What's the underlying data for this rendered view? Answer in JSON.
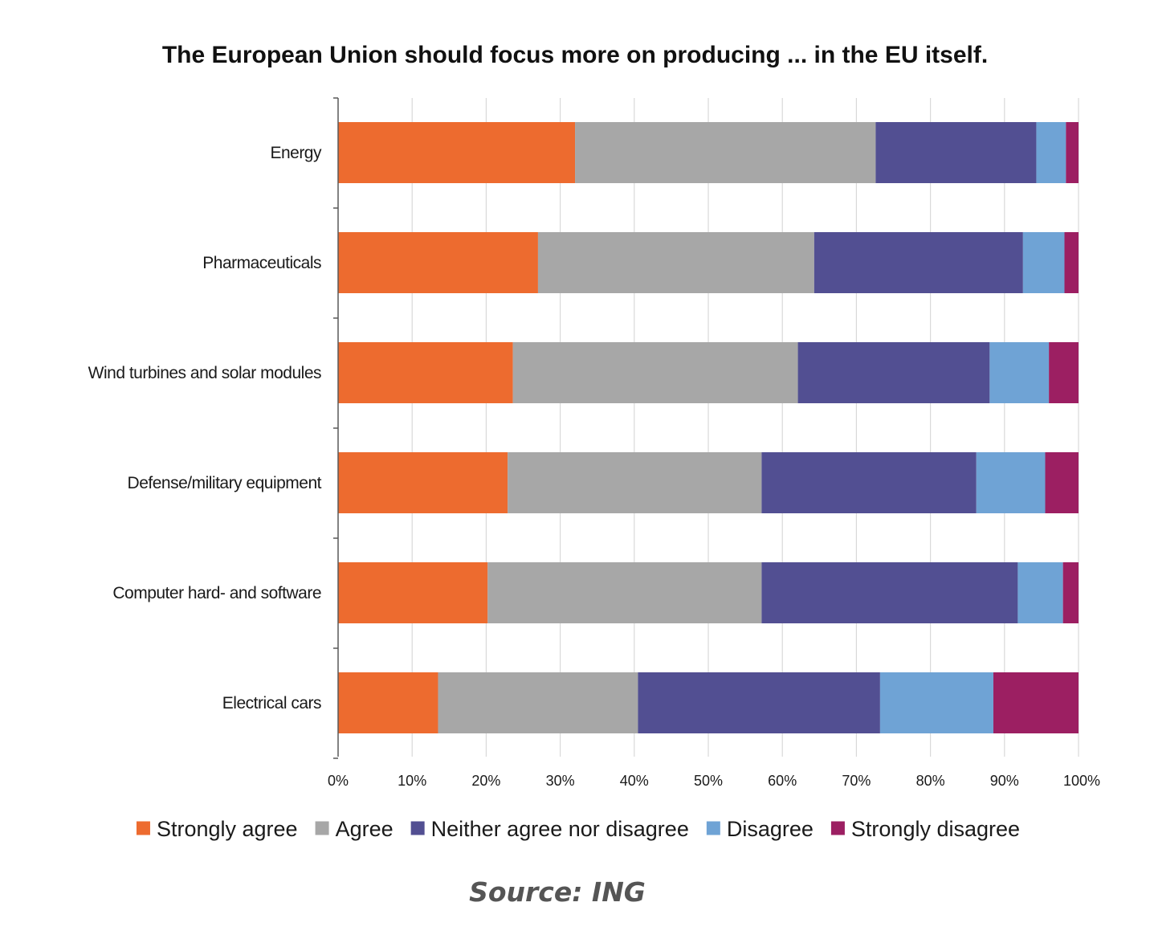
{
  "chart_data": {
    "type": "bar",
    "orientation": "horizontal",
    "stacked": true,
    "title": "The European Union should focus more on producing ... in the EU itself.",
    "categories": [
      "Energy",
      "Pharmaceuticals",
      "Wind turbines and solar modules",
      "Defense/military equipment",
      "Computer hard- and software",
      "Electrical cars"
    ],
    "series": [
      {
        "name": "Strongly agree",
        "color": "#ED6B2F",
        "values": [
          32,
          27,
          23.6,
          22.9,
          20.2,
          13.5
        ]
      },
      {
        "name": "Agree",
        "color": "#A7A7A7",
        "values": [
          40.6,
          37.3,
          38.5,
          34.3,
          37.0,
          27.0
        ]
      },
      {
        "name": "Neither agree nor disagree",
        "color": "#524F92",
        "values": [
          21.7,
          28.2,
          25.9,
          29.0,
          34.6,
          32.7
        ]
      },
      {
        "name": "Disagree",
        "color": "#6FA3D5",
        "values": [
          4.0,
          5.6,
          8.0,
          9.3,
          6.1,
          15.3
        ]
      },
      {
        "name": "Strongly disagree",
        "color": "#9C1F62",
        "values": [
          1.7,
          1.9,
          4.0,
          4.5,
          2.1,
          11.5
        ]
      }
    ],
    "xlim": [
      0,
      100
    ],
    "xticks": [
      "0%",
      "10%",
      "20%",
      "30%",
      "40%",
      "50%",
      "60%",
      "70%",
      "80%",
      "90%",
      "100%"
    ],
    "grid": true,
    "legend_position": "bottom"
  },
  "source": "Source: ING"
}
